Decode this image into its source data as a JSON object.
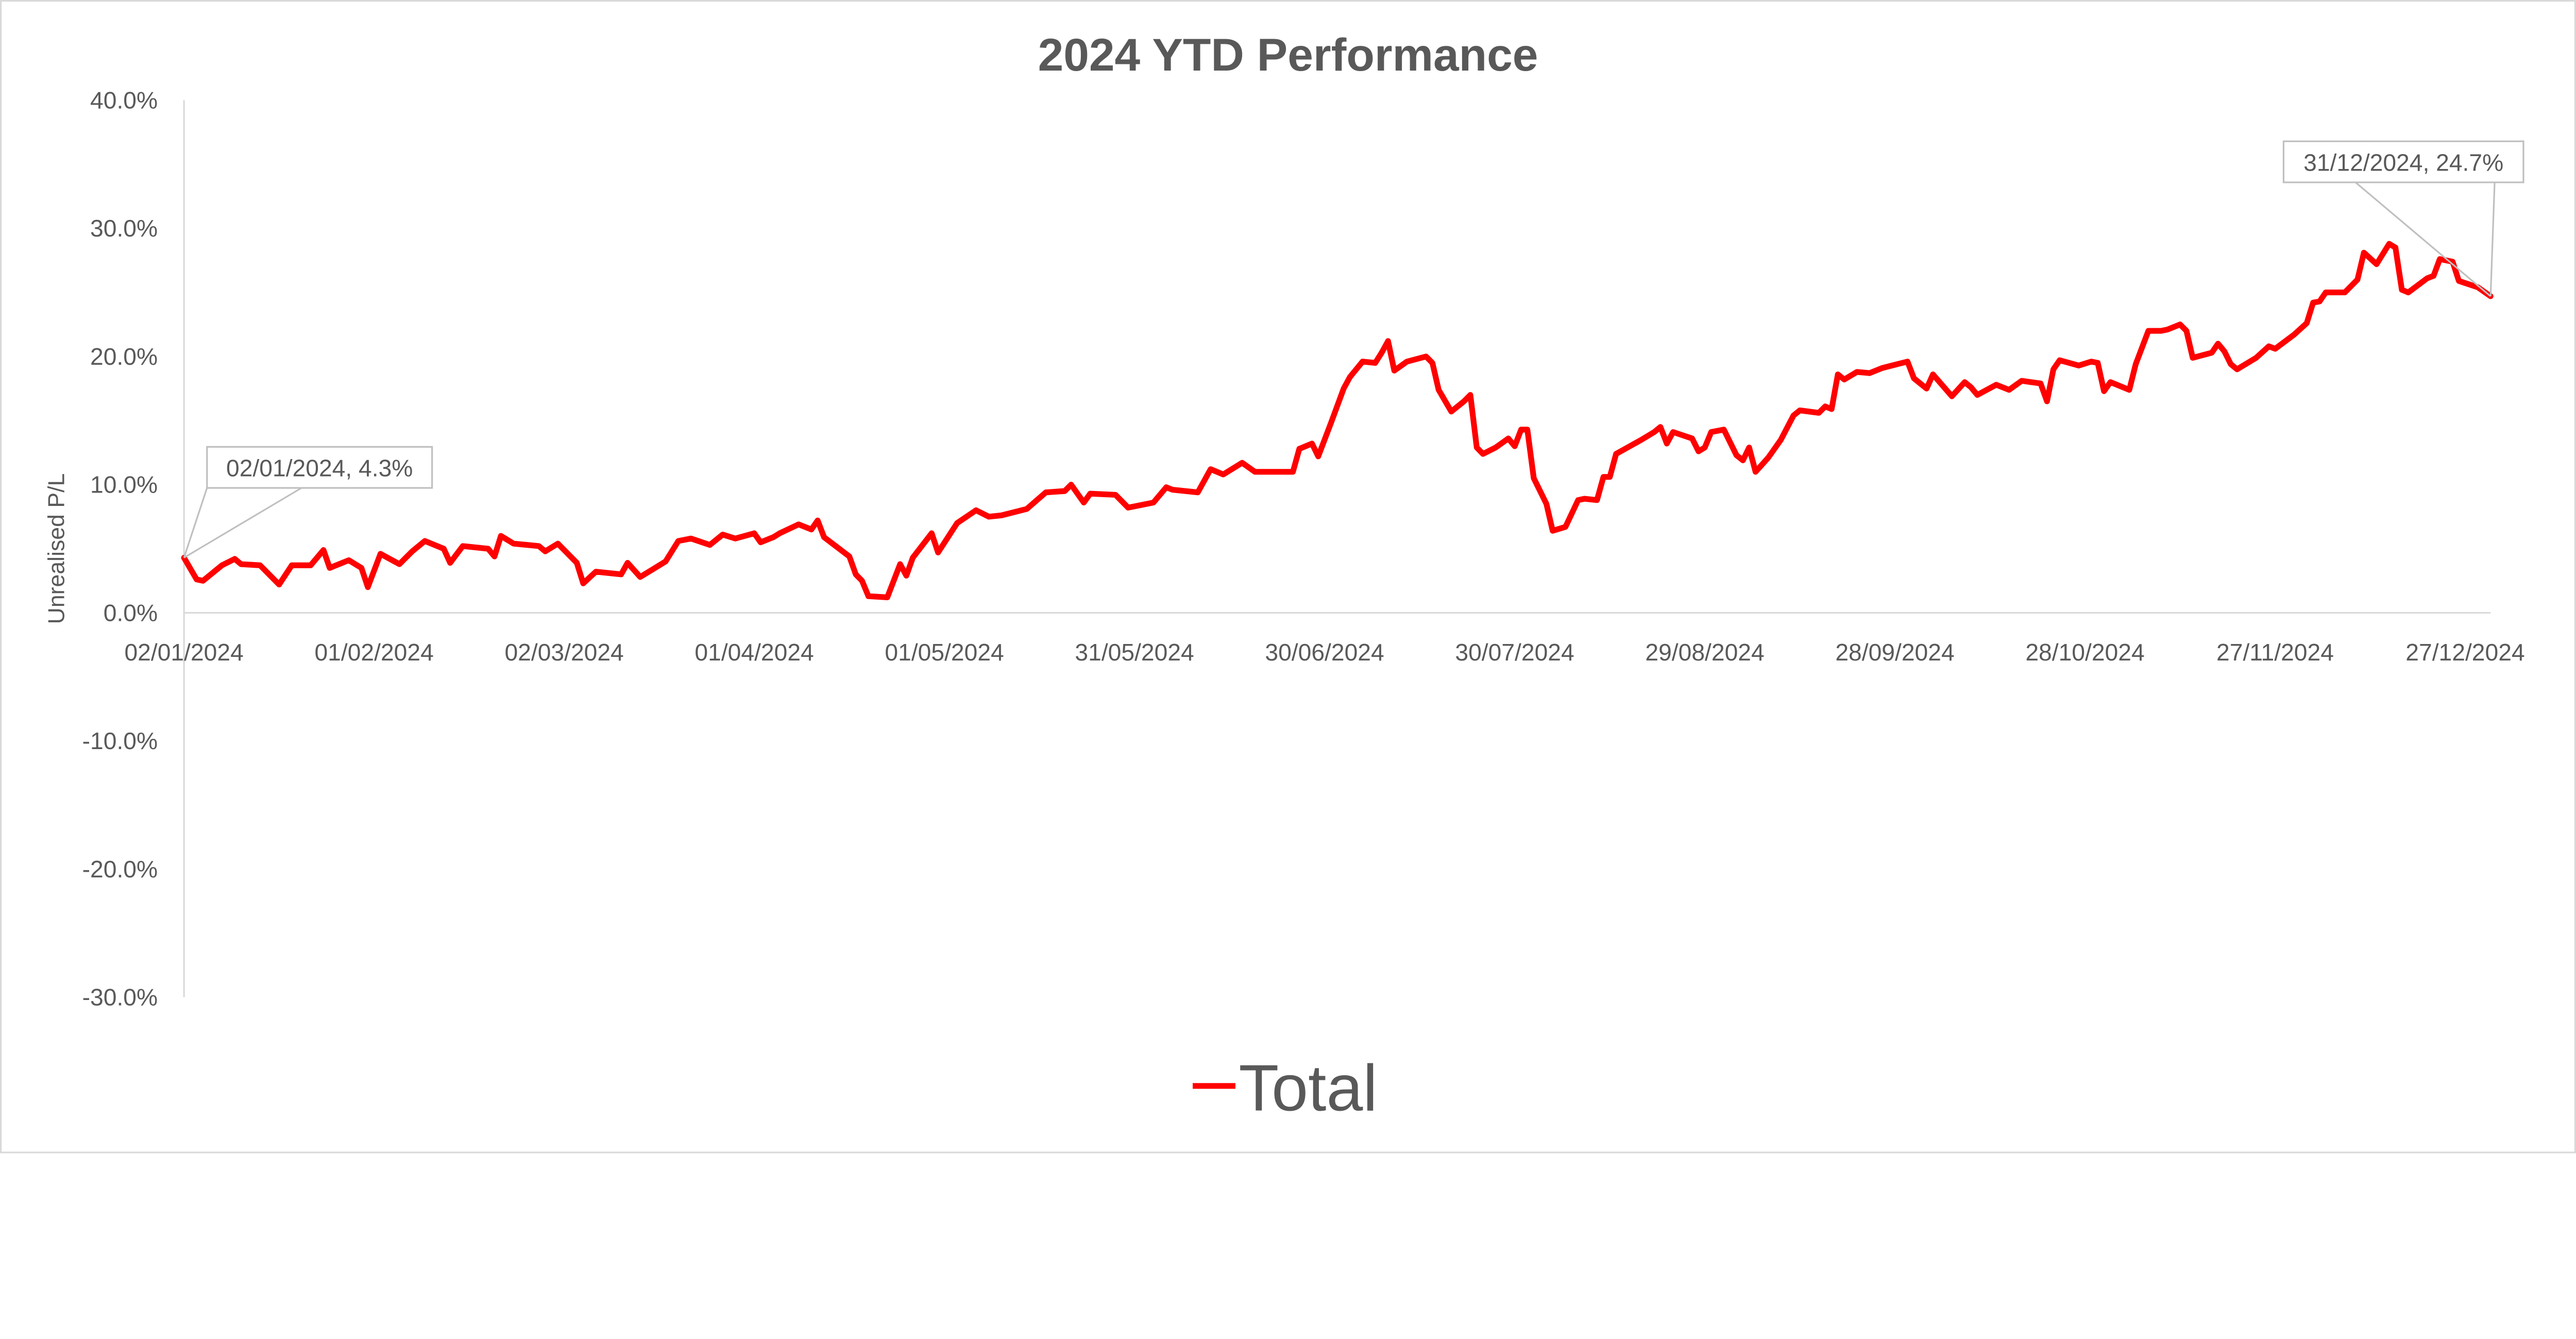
{
  "chart_data": {
    "type": "line",
    "title": "2024 YTD Performance",
    "xlabel": "",
    "ylabel": "Unrealised P/L",
    "ylim": [
      -30,
      40
    ],
    "y_ticks": [
      "40.0%",
      "30.0%",
      "20.0%",
      "10.0%",
      "0.0%",
      "-10.0%",
      "-20.0%",
      "-30.0%"
    ],
    "y_tick_values": [
      40,
      30,
      20,
      10,
      0,
      -10,
      -20,
      -30
    ],
    "x_ticks": [
      "02/01/2024",
      "01/02/2024",
      "02/03/2024",
      "01/04/2024",
      "01/05/2024",
      "31/05/2024",
      "30/06/2024",
      "30/07/2024",
      "29/08/2024",
      "28/09/2024",
      "28/10/2024",
      "27/11/2024",
      "27/12/2024"
    ],
    "x_tick_dates": [
      "2024-01-02",
      "2024-02-01",
      "2024-03-02",
      "2024-04-01",
      "2024-05-01",
      "2024-05-31",
      "2024-06-30",
      "2024-07-30",
      "2024-08-29",
      "2024-09-28",
      "2024-10-28",
      "2024-11-27",
      "2024-12-27"
    ],
    "xlim": [
      "2024-01-02",
      "2024-12-31"
    ],
    "grid": false,
    "legend_position": "bottom",
    "series": [
      {
        "name": "Total",
        "color": "#ff0000",
        "points": [
          [
            "2024-01-02",
            4.3
          ],
          [
            "2024-01-04",
            2.6
          ],
          [
            "2024-01-05",
            2.5
          ],
          [
            "2024-01-08",
            3.7
          ],
          [
            "2024-01-10",
            4.2
          ],
          [
            "2024-01-11",
            3.8
          ],
          [
            "2024-01-14",
            3.7
          ],
          [
            "2024-01-17",
            2.2
          ],
          [
            "2024-01-19",
            3.7
          ],
          [
            "2024-01-22",
            3.7
          ],
          [
            "2024-01-24",
            4.9
          ],
          [
            "2024-01-25",
            3.5
          ],
          [
            "2024-01-28",
            4.1
          ],
          [
            "2024-01-30",
            3.5
          ],
          [
            "2024-01-31",
            2.0
          ],
          [
            "2024-02-02",
            4.6
          ],
          [
            "2024-02-05",
            3.8
          ],
          [
            "2024-02-07",
            4.8
          ],
          [
            "2024-02-09",
            5.6
          ],
          [
            "2024-02-12",
            5.0
          ],
          [
            "2024-02-13",
            3.9
          ],
          [
            "2024-02-15",
            5.2
          ],
          [
            "2024-02-19",
            5.0
          ],
          [
            "2024-02-20",
            4.4
          ],
          [
            "2024-02-21",
            6.0
          ],
          [
            "2024-02-23",
            5.4
          ],
          [
            "2024-02-27",
            5.2
          ],
          [
            "2024-02-28",
            4.8
          ],
          [
            "2024-03-01",
            5.4
          ],
          [
            "2024-03-04",
            3.9
          ],
          [
            "2024-03-05",
            2.3
          ],
          [
            "2024-03-07",
            3.2
          ],
          [
            "2024-03-11",
            3.0
          ],
          [
            "2024-03-12",
            3.9
          ],
          [
            "2024-03-14",
            2.8
          ],
          [
            "2024-03-18",
            4.0
          ],
          [
            "2024-03-20",
            5.6
          ],
          [
            "2024-03-22",
            5.8
          ],
          [
            "2024-03-25",
            5.3
          ],
          [
            "2024-03-27",
            6.1
          ],
          [
            "2024-03-29",
            5.8
          ],
          [
            "2024-04-01",
            6.2
          ],
          [
            "2024-04-02",
            5.5
          ],
          [
            "2024-04-04",
            5.9
          ],
          [
            "2024-04-05",
            6.2
          ],
          [
            "2024-04-08",
            6.9
          ],
          [
            "2024-04-10",
            6.5
          ],
          [
            "2024-04-11",
            7.2
          ],
          [
            "2024-04-12",
            5.9
          ],
          [
            "2024-04-16",
            4.4
          ],
          [
            "2024-04-17",
            3.0
          ],
          [
            "2024-04-18",
            2.5
          ],
          [
            "2024-04-19",
            1.3
          ],
          [
            "2024-04-22",
            1.2
          ],
          [
            "2024-04-24",
            3.8
          ],
          [
            "2024-04-25",
            2.9
          ],
          [
            "2024-04-26",
            4.3
          ],
          [
            "2024-04-29",
            6.2
          ],
          [
            "2024-04-30",
            4.7
          ],
          [
            "2024-05-03",
            7.0
          ],
          [
            "2024-05-06",
            8.0
          ],
          [
            "2024-05-08",
            7.5
          ],
          [
            "2024-05-10",
            7.6
          ],
          [
            "2024-05-14",
            8.1
          ],
          [
            "2024-05-17",
            9.4
          ],
          [
            "2024-05-20",
            9.5
          ],
          [
            "2024-05-21",
            10.0
          ],
          [
            "2024-05-23",
            8.6
          ],
          [
            "2024-05-24",
            9.3
          ],
          [
            "2024-05-28",
            9.2
          ],
          [
            "2024-05-30",
            8.2
          ],
          [
            "2024-06-03",
            8.6
          ],
          [
            "2024-06-05",
            9.8
          ],
          [
            "2024-06-06",
            9.6
          ],
          [
            "2024-06-10",
            9.4
          ],
          [
            "2024-06-12",
            11.2
          ],
          [
            "2024-06-14",
            10.8
          ],
          [
            "2024-06-17",
            11.7
          ],
          [
            "2024-06-19",
            11.0
          ],
          [
            "2024-06-21",
            11.0
          ],
          [
            "2024-06-25",
            11.0
          ],
          [
            "2024-06-26",
            12.8
          ],
          [
            "2024-06-28",
            13.2
          ],
          [
            "2024-06-29",
            12.2
          ],
          [
            "2024-07-01",
            14.8
          ],
          [
            "2024-07-03",
            17.5
          ],
          [
            "2024-07-04",
            18.4
          ],
          [
            "2024-07-06",
            19.6
          ],
          [
            "2024-07-08",
            19.5
          ],
          [
            "2024-07-09",
            20.3
          ],
          [
            "2024-07-10",
            21.2
          ],
          [
            "2024-07-11",
            18.9
          ],
          [
            "2024-07-13",
            19.6
          ],
          [
            "2024-07-16",
            20.0
          ],
          [
            "2024-07-17",
            19.5
          ],
          [
            "2024-07-18",
            17.4
          ],
          [
            "2024-07-20",
            15.7
          ],
          [
            "2024-07-22",
            16.5
          ],
          [
            "2024-07-23",
            17.0
          ],
          [
            "2024-07-24",
            12.9
          ],
          [
            "2024-07-25",
            12.4
          ],
          [
            "2024-07-27",
            12.9
          ],
          [
            "2024-07-29",
            13.6
          ],
          [
            "2024-07-30",
            13.0
          ],
          [
            "2024-07-31",
            14.3
          ],
          [
            "2024-08-01",
            14.3
          ],
          [
            "2024-08-02",
            10.5
          ],
          [
            "2024-08-04",
            8.5
          ],
          [
            "2024-08-05",
            6.4
          ],
          [
            "2024-08-07",
            6.7
          ],
          [
            "2024-08-09",
            8.8
          ],
          [
            "2024-08-10",
            8.9
          ],
          [
            "2024-08-12",
            8.8
          ],
          [
            "2024-08-13",
            10.6
          ],
          [
            "2024-08-14",
            10.6
          ],
          [
            "2024-08-15",
            12.4
          ],
          [
            "2024-08-19",
            13.5
          ],
          [
            "2024-08-21",
            14.1
          ],
          [
            "2024-08-22",
            14.5
          ],
          [
            "2024-08-23",
            13.2
          ],
          [
            "2024-08-24",
            14.1
          ],
          [
            "2024-08-27",
            13.6
          ],
          [
            "2024-08-28",
            12.6
          ],
          [
            "2024-08-29",
            12.9
          ],
          [
            "2024-08-30",
            14.1
          ],
          [
            "2024-09-01",
            14.3
          ],
          [
            "2024-09-03",
            12.3
          ],
          [
            "2024-09-04",
            11.9
          ],
          [
            "2024-09-05",
            12.9
          ],
          [
            "2024-09-06",
            11.0
          ],
          [
            "2024-09-08",
            12.1
          ],
          [
            "2024-09-10",
            13.5
          ],
          [
            "2024-09-12",
            15.4
          ],
          [
            "2024-09-13",
            15.8
          ],
          [
            "2024-09-16",
            15.6
          ],
          [
            "2024-09-17",
            16.1
          ],
          [
            "2024-09-18",
            15.9
          ],
          [
            "2024-09-19",
            18.6
          ],
          [
            "2024-09-20",
            18.2
          ],
          [
            "2024-09-22",
            18.8
          ],
          [
            "2024-09-24",
            18.7
          ],
          [
            "2024-09-26",
            19.1
          ],
          [
            "2024-09-30",
            19.6
          ],
          [
            "2024-10-01",
            18.3
          ],
          [
            "2024-10-03",
            17.5
          ],
          [
            "2024-10-04",
            18.6
          ],
          [
            "2024-10-07",
            16.9
          ],
          [
            "2024-10-09",
            18.0
          ],
          [
            "2024-10-10",
            17.6
          ],
          [
            "2024-10-11",
            17.0
          ],
          [
            "2024-10-14",
            17.8
          ],
          [
            "2024-10-16",
            17.4
          ],
          [
            "2024-10-18",
            18.1
          ],
          [
            "2024-10-21",
            17.9
          ],
          [
            "2024-10-22",
            16.5
          ],
          [
            "2024-10-23",
            19.0
          ],
          [
            "2024-10-24",
            19.7
          ],
          [
            "2024-10-27",
            19.3
          ],
          [
            "2024-10-29",
            19.6
          ],
          [
            "2024-10-30",
            19.5
          ],
          [
            "2024-10-31",
            17.3
          ],
          [
            "2024-11-01",
            18.0
          ],
          [
            "2024-11-04",
            17.4
          ],
          [
            "2024-11-05",
            19.4
          ],
          [
            "2024-11-07",
            22.0
          ],
          [
            "2024-11-09",
            22.0
          ],
          [
            "2024-11-10",
            22.1
          ],
          [
            "2024-11-12",
            22.5
          ],
          [
            "2024-11-13",
            22.0
          ],
          [
            "2024-11-14",
            19.9
          ],
          [
            "2024-11-17",
            20.3
          ],
          [
            "2024-11-18",
            21.0
          ],
          [
            "2024-11-19",
            20.4
          ],
          [
            "2024-11-20",
            19.4
          ],
          [
            "2024-11-21",
            19.0
          ],
          [
            "2024-11-24",
            19.9
          ],
          [
            "2024-11-26",
            20.8
          ],
          [
            "2024-11-27",
            20.6
          ],
          [
            "2024-11-30",
            21.7
          ],
          [
            "2024-12-02",
            22.6
          ],
          [
            "2024-12-03",
            24.2
          ],
          [
            "2024-12-04",
            24.3
          ],
          [
            "2024-12-05",
            25.0
          ],
          [
            "2024-12-08",
            25.0
          ],
          [
            "2024-12-10",
            26.0
          ],
          [
            "2024-12-11",
            28.1
          ],
          [
            "2024-12-13",
            27.2
          ],
          [
            "2024-12-15",
            28.8
          ],
          [
            "2024-12-16",
            28.5
          ],
          [
            "2024-12-17",
            25.2
          ],
          [
            "2024-12-18",
            25.0
          ],
          [
            "2024-12-21",
            26.1
          ],
          [
            "2024-12-22",
            26.3
          ],
          [
            "2024-12-23",
            27.6
          ],
          [
            "2024-12-25",
            27.4
          ],
          [
            "2024-12-26",
            25.9
          ],
          [
            "2024-12-29",
            25.4
          ],
          [
            "2024-12-31",
            24.7
          ]
        ]
      }
    ],
    "annotations": [
      {
        "label": "02/01/2024, 4.3%",
        "date": "2024-01-02",
        "value": 4.3
      },
      {
        "label": "31/12/2024, 24.7%",
        "date": "2024-12-31",
        "value": 24.7
      }
    ],
    "legend": {
      "label": "Total"
    }
  }
}
